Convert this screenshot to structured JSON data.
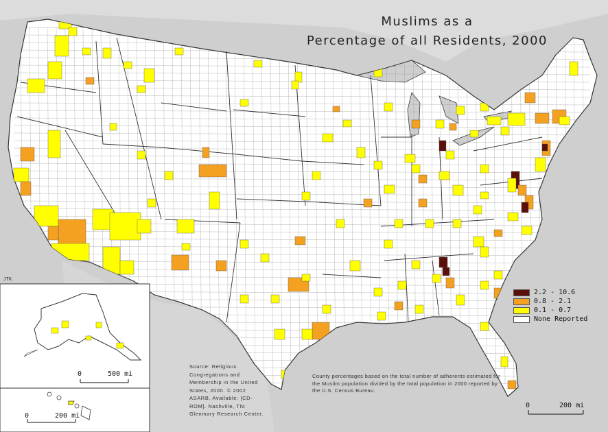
{
  "title_line1": "Muslims as a",
  "title_line2": "Percentage of all Residents, 2000",
  "credit": "JTK",
  "legend": [
    {
      "label": "2.2 - 10.6",
      "color": "#5b0f0a"
    },
    {
      "label": "0.8 - 2.1",
      "color": "#f4a020"
    },
    {
      "label": "0.1 - 0.7",
      "color": "#ffff00"
    },
    {
      "label": "None Reported",
      "color": "#ffffff"
    }
  ],
  "source_text": "Source: Religious Congregations and Membership in the United States, 2000. © 2002 ASARB. Available: [CD-ROM]. Nashville, TN: Glenmary Research Center.",
  "note_text": "County percentages based on the total number of adherents estimated for the Muslim population divided by the total population in 2000 reported by the U.S. Census Bureau.",
  "scales": {
    "alaska": {
      "start": "0",
      "end": "500 mi"
    },
    "hawaii": {
      "start": "0",
      "end": "200 mi"
    },
    "main": {
      "start": "0",
      "end": "200 mi"
    }
  },
  "colors": {
    "water": "#cfcfcf",
    "land": "#ffffff",
    "border": "#333333"
  }
}
